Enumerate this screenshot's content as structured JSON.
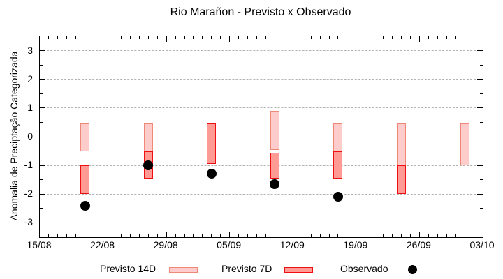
{
  "chart_data": {
    "type": "bar",
    "subtype": "range-bars-with-scatter",
    "title": "Rio Marañon - Previsto x Observado",
    "ylabel": "Anomalia de Preciptação Categorizada",
    "xlabel": "",
    "ylim": [
      -3.5,
      3.5
    ],
    "yticks": [
      -3,
      -2,
      -1,
      0,
      1,
      2,
      3
    ],
    "y_minor_step": 0.5,
    "xlim_days": [
      0,
      49
    ],
    "xtick_days": [
      0,
      7,
      14,
      21,
      28,
      35,
      42,
      49
    ],
    "xtick_labels": [
      "15/08",
      "22/08",
      "29/08",
      "05/09",
      "12/09",
      "19/09",
      "26/09",
      "03/10"
    ],
    "x_minor_step_days": 1,
    "grid": "horizontal-dashed",
    "grid_color": "#b3b3b3",
    "axis_color": "#000000",
    "legend_position": "bottom-outside",
    "series": [
      {
        "name": "Previsto 14D",
        "type": "range-bar",
        "fill": "#ffcccc",
        "border": "#f08878",
        "bars": [
          {
            "day": 5,
            "date": "20/08",
            "low": -0.5,
            "high": 0.45
          },
          {
            "day": 12,
            "date": "27/08",
            "low": -0.5,
            "high": 0.45
          },
          {
            "day": 26,
            "date": "10/09",
            "low": -0.45,
            "high": 0.9
          },
          {
            "day": 33,
            "date": "17/09",
            "low": -0.5,
            "high": 0.45
          },
          {
            "day": 40,
            "date": "24/09",
            "low": -1.0,
            "high": 0.45
          },
          {
            "day": 47,
            "date": "01/10",
            "low": -1.0,
            "high": 0.45
          }
        ]
      },
      {
        "name": "Previsto 7D",
        "type": "range-bar",
        "fill": "#ff9a95",
        "border": "#ee1010",
        "bars": [
          {
            "day": 5,
            "date": "20/08",
            "low": -2.0,
            "high": -1.0
          },
          {
            "day": 12,
            "date": "27/08",
            "low": -1.45,
            "high": -0.5
          },
          {
            "day": 19,
            "date": "03/09",
            "low": -0.95,
            "high": 0.45
          },
          {
            "day": 26,
            "date": "10/09",
            "low": -1.45,
            "high": -0.55
          },
          {
            "day": 33,
            "date": "17/09",
            "low": -1.45,
            "high": -0.5
          },
          {
            "day": 40,
            "date": "24/09",
            "low": -2.0,
            "high": -1.0
          }
        ]
      },
      {
        "name": "Observado",
        "type": "scatter",
        "color": "#000000",
        "points": [
          {
            "day": 5,
            "date": "20/08",
            "y": -2.4
          },
          {
            "day": 12,
            "date": "27/08",
            "y": -1.0
          },
          {
            "day": 19,
            "date": "03/09",
            "y": -1.3
          },
          {
            "day": 26,
            "date": "10/09",
            "y": -1.65
          },
          {
            "day": 33,
            "date": "17/09",
            "y": -2.1
          }
        ]
      }
    ]
  }
}
